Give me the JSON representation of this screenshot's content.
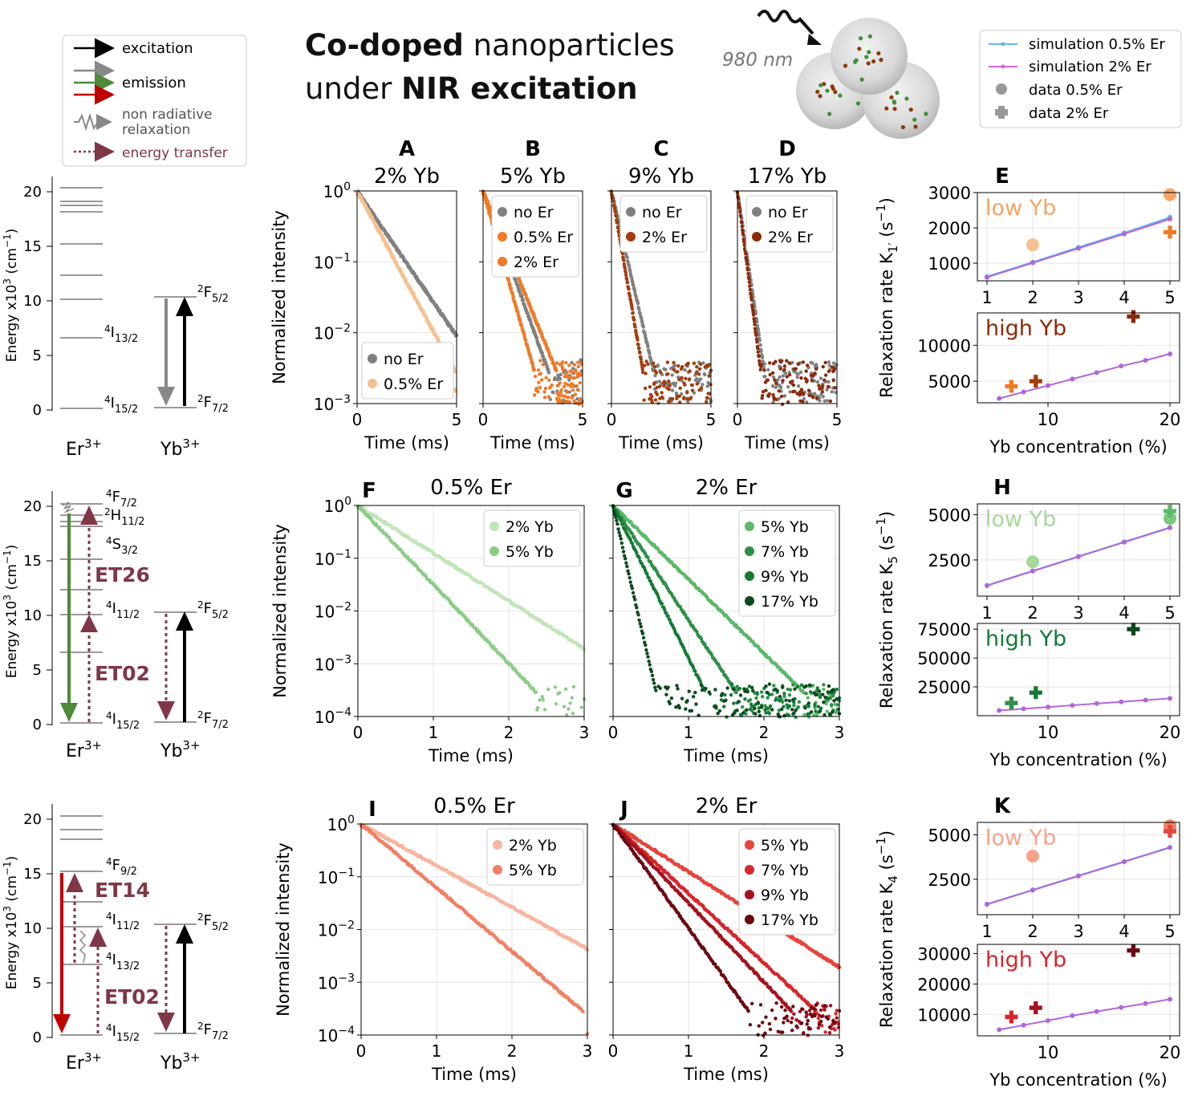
{
  "title": {
    "part1_bold": "Co-doped",
    "part1_rest": " nanoparticles",
    "part2_pre": "under ",
    "part2_bold": "NIR excitation"
  },
  "excitation_label": "980 nm",
  "key_legend": {
    "excitation": "excitation",
    "emission": "emission",
    "nonrad_line1": "non radiative",
    "nonrad_line2": "relaxation",
    "energy_transfer": "energy transfer"
  },
  "sim_legend": {
    "sim05": "simulation 0.5% Er",
    "sim2": "simulation 2% Er",
    "data05": "data 0.5% Er",
    "data2": "data 2% Er"
  },
  "colors": {
    "gray": "#808080",
    "orange_light": "#f6c08f",
    "orange": "#ef7a27",
    "brown": "#8b2a0a",
    "green_light": "#a6d89b",
    "green": "#3e9b4a",
    "green_dark": "#0c4a1e",
    "red_light": "#f6a389",
    "red": "#d6272c",
    "red_dark": "#6b0a13",
    "purple": "#b266d9",
    "blue": "#6ab4e8",
    "et": "#7f3747"
  },
  "energy_diagrams": {
    "ylabel": "Energy x10",
    "ylabel_sup": "3",
    "ylabel_unit": " (cm",
    "ylabel_unit_sup": "−1",
    "ylabel_end": ")",
    "yticks": [
      "0",
      "5",
      "10",
      "15",
      "20"
    ],
    "er": "Er",
    "yb": "Yb",
    "ion_charge": "3+",
    "row1": {
      "l1": "4I13/2",
      "l1_sup": "4",
      "l1_main": "I",
      "l1_sub": "13/2",
      "l0_sup": "4",
      "l0_main": "I",
      "l0_sub": "15/2",
      "yb_up_sup": "2",
      "yb_up_main": "F",
      "yb_up_sub": "5/2",
      "yb_lo_sup": "2",
      "yb_lo_main": "F",
      "yb_lo_sub": "7/2"
    },
    "row2": {
      "a_sup": "4",
      "a_main": "F",
      "a_sub": "7/2",
      "b_sup": "2",
      "b_main": "H",
      "b_sub": "11/2",
      "c_sup": "4",
      "c_main": "S",
      "c_sub": "3/2",
      "d_sup": "4",
      "d_main": "I",
      "d_sub": "11/2",
      "e_sup": "4",
      "e_main": "I",
      "e_sub": "15/2",
      "et_top": "ET26",
      "et_bot": "ET02",
      "yb_up_sup": "2",
      "yb_up_main": "F",
      "yb_up_sub": "5/2",
      "yb_lo_sup": "2",
      "yb_lo_main": "F",
      "yb_lo_sub": "7/2"
    },
    "row3": {
      "a_sup": "4",
      "a_main": "F",
      "a_sub": "9/2",
      "b_sup": "4",
      "b_main": "I",
      "b_sub": "11/2",
      "c_sup": "4",
      "c_main": "I",
      "c_sub": "13/2",
      "e_sup": "4",
      "e_main": "I",
      "e_sub": "15/2",
      "et_top": "ET14",
      "et_bot": "ET02",
      "yb_up_sup": "2",
      "yb_up_main": "F",
      "yb_up_sub": "5/2",
      "yb_lo_sup": "2",
      "yb_lo_main": "F",
      "yb_lo_sub": "7/2"
    }
  },
  "chart_data": [
    {
      "id": "A",
      "type": "scatter",
      "letter": "A",
      "title": "2% Yb",
      "xlabel": "Time (ms)",
      "ylabel": "Normalized intensity",
      "yscale": "log",
      "xlim": [
        0,
        5
      ],
      "ylim_exp": [
        -3,
        0
      ],
      "xticks": [
        "0",
        "5"
      ],
      "series": [
        {
          "name": "no Er",
          "color": "#808080",
          "tau": 1.06,
          "noise": 0.0
        },
        {
          "name": "0.5% Er",
          "color": "#f6c08f",
          "tau": 0.84,
          "noise": 0.0
        }
      ],
      "legend": "lower-left"
    },
    {
      "id": "B",
      "type": "scatter",
      "letter": "B",
      "title": "5% Yb",
      "xlabel": "Time (ms)",
      "yscale": "log",
      "xlim": [
        0,
        5
      ],
      "ylim_exp": [
        -3,
        0
      ],
      "xticks": [
        "0",
        "5"
      ],
      "series": [
        {
          "name": "no Er",
          "color": "#808080",
          "tau": 0.56
        },
        {
          "name": "0.5% Er",
          "color": "#ef7a27",
          "tau": 0.63
        },
        {
          "name": "2% Er",
          "color": "#ef7a27",
          "tau": 0.44
        }
      ],
      "legend": "top-right"
    },
    {
      "id": "C",
      "type": "scatter",
      "letter": "C",
      "title": "9% Yb",
      "xlabel": "Time (ms)",
      "yscale": "log",
      "xlim": [
        0,
        5
      ],
      "ylim_exp": [
        -3,
        0
      ],
      "xticks": [
        "0",
        "5"
      ],
      "series": [
        {
          "name": "no Er",
          "color": "#808080",
          "tau": 0.36
        },
        {
          "name": "2% Er",
          "color": "#a23d0e",
          "tau": 0.27
        }
      ],
      "legend": "top-right"
    },
    {
      "id": "D",
      "type": "scatter",
      "letter": "D",
      "title": "17% Yb",
      "xlabel": "Time (ms)",
      "yscale": "log",
      "xlim": [
        0,
        5
      ],
      "ylim_exp": [
        -3,
        0
      ],
      "xticks": [
        "0",
        "5"
      ],
      "series": [
        {
          "name": "no Er",
          "color": "#808080",
          "tau": 0.23
        },
        {
          "name": "2% Er",
          "color": "#8b2a0a",
          "tau": 0.2
        }
      ],
      "legend": "top-right"
    },
    {
      "id": "E",
      "type": "line+scatter",
      "letter": "E",
      "ylabel": "Relaxation rate K",
      "ylabel_sub": "1′",
      "ylabel_unit": " (s",
      "ylabel_unit_sup": "−1",
      "ylabel_end": ")",
      "xlabel": "Yb concentration (%)",
      "top": {
        "label": "low Yb",
        "label_color": "#f6a565",
        "xlim": [
          1,
          5
        ],
        "ylim": [
          500,
          3000
        ],
        "yticks": [
          "1000",
          "2000",
          "3000"
        ],
        "xticks": [
          "1",
          "2",
          "3",
          "4",
          "5"
        ],
        "sim05": {
          "x": [
            1,
            2,
            3,
            4,
            5
          ],
          "y": [
            620,
            1030,
            1450,
            1860,
            2300
          ]
        },
        "sim2": {
          "x": [
            1,
            2,
            3,
            4,
            5
          ],
          "y": [
            600,
            1010,
            1420,
            1830,
            2250
          ]
        },
        "data05": [
          {
            "x": 2,
            "y": 1520,
            "color": "#f6c08f"
          },
          {
            "x": 5,
            "y": 2940,
            "color": "#f6a565"
          }
        ],
        "data2": [
          {
            "x": 5,
            "y": 1880,
            "color": "#ef7a27"
          }
        ]
      },
      "bottom": {
        "label": "high Yb",
        "label_color": "#8b2a0a",
        "xlim": [
          5,
          20
        ],
        "ylim": [
          2000,
          14500
        ],
        "yticks": [
          "5000",
          "10000"
        ],
        "xticks": [
          "10",
          "20"
        ],
        "sim2": {
          "x": [
            6,
            8,
            10,
            12,
            14,
            16,
            18,
            20
          ],
          "y": [
            2600,
            3500,
            4400,
            5300,
            6200,
            7100,
            7900,
            8800
          ]
        },
        "data2": [
          {
            "x": 7,
            "y": 4300,
            "color": "#ef7a27"
          },
          {
            "x": 9,
            "y": 5000,
            "color": "#a23d0e"
          },
          {
            "x": 17,
            "y": 14000,
            "color": "#8b2a0a"
          }
        ]
      }
    },
    {
      "id": "F",
      "type": "scatter",
      "letter": "F",
      "title": "0.5% Er",
      "xlabel": "Time (ms)",
      "ylabel": "Normalized intensity",
      "yscale": "log",
      "xlim": [
        0,
        3
      ],
      "ylim_exp": [
        -4,
        0
      ],
      "xticks": [
        "0",
        "1",
        "2",
        "3"
      ],
      "series": [
        {
          "name": "2% Yb",
          "color": "#c2e5b9",
          "tau": 0.48
        },
        {
          "name": "5% Yb",
          "color": "#8ccd86",
          "tau": 0.29
        }
      ],
      "legend": "top-right"
    },
    {
      "id": "G",
      "type": "scatter",
      "letter": "G",
      "title": "2% Er",
      "xlabel": "Time (ms)",
      "yscale": "log",
      "xlim": [
        0,
        3
      ],
      "ylim_exp": [
        -4,
        0
      ],
      "xticks": [
        "0",
        "1",
        "2",
        "3"
      ],
      "series": [
        {
          "name": "5% Yb",
          "color": "#5cb86a",
          "tau": 0.31
        },
        {
          "name": "7% Yb",
          "color": "#2f8f48",
          "tau": 0.2
        },
        {
          "name": "9% Yb",
          "color": "#157a35",
          "tau": 0.15
        },
        {
          "name": "17% Yb",
          "color": "#0c4a1e",
          "tau": 0.07
        }
      ],
      "legend": "top-right"
    },
    {
      "id": "H",
      "type": "line+scatter",
      "letter": "H",
      "ylabel": "Relaxation rate K",
      "ylabel_sub": "5",
      "ylabel_unit": " (s",
      "ylabel_unit_sup": "−1",
      "ylabel_end": ")",
      "xlabel": "Yb concentration (%)",
      "top": {
        "label": "low Yb",
        "label_color": "#a6d89b",
        "xlim": [
          1,
          5
        ],
        "ylim": [
          500,
          5600
        ],
        "yticks": [
          "2500",
          "5000"
        ],
        "xticks": [
          "1",
          "2",
          "3",
          "4",
          "5"
        ],
        "sim05": {
          "x": [
            1,
            2,
            3,
            4,
            5
          ],
          "y": [
            1100,
            1900,
            2700,
            3500,
            4300
          ]
        },
        "sim2": {
          "x": [
            1,
            2,
            3,
            4,
            5
          ],
          "y": [
            1080,
            1880,
            2680,
            3480,
            4280
          ]
        },
        "data05": [
          {
            "x": 2,
            "y": 2400,
            "color": "#a6d89b"
          },
          {
            "x": 5,
            "y": 4800,
            "color": "#7cc97a"
          }
        ],
        "data2": [
          {
            "x": 5,
            "y": 5200,
            "color": "#5cb86a"
          }
        ]
      },
      "bottom": {
        "label": "high Yb",
        "label_color": "#157a35",
        "xlim": [
          5,
          20
        ],
        "ylim": [
          0,
          80000
        ],
        "yticks": [
          "25000",
          "50000",
          "75000"
        ],
        "xticks": [
          "10",
          "20"
        ],
        "sim2": {
          "x": [
            6,
            8,
            10,
            12,
            14,
            16,
            18,
            20
          ],
          "y": [
            4500,
            6000,
            7500,
            9000,
            10500,
            12000,
            13500,
            15000
          ]
        },
        "data2": [
          {
            "x": 7,
            "y": 11000,
            "color": "#2f8f48"
          },
          {
            "x": 9,
            "y": 20000,
            "color": "#157a35"
          },
          {
            "x": 17,
            "y": 75000,
            "color": "#0c4a1e"
          }
        ]
      }
    },
    {
      "id": "I",
      "type": "scatter",
      "letter": "I",
      "title": "0.5% Er",
      "xlabel": "Time (ms)",
      "ylabel": "Normalized intensity",
      "yscale": "log",
      "xlim": [
        0,
        3
      ],
      "ylim_exp": [
        -4,
        0
      ],
      "xticks": [
        "0",
        "1",
        "2",
        "3"
      ],
      "series": [
        {
          "name": "2% Yb",
          "color": "#f8b5a0",
          "tau": 0.55
        },
        {
          "name": "5% Yb",
          "color": "#f08064",
          "tau": 0.36
        }
      ],
      "legend": "top-right"
    },
    {
      "id": "J",
      "type": "scatter",
      "letter": "J",
      "title": "2% Er",
      "xlabel": "Time (ms)",
      "yscale": "log",
      "xlim": [
        0,
        3
      ],
      "ylim_exp": [
        -4,
        0
      ],
      "xticks": [
        "0",
        "1",
        "2",
        "3"
      ],
      "series": [
        {
          "name": "5% Yb",
          "color": "#e5453a",
          "tau": 0.48
        },
        {
          "name": "7% Yb",
          "color": "#d6272c",
          "tau": 0.33
        },
        {
          "name": "9% Yb",
          "color": "#a4121f",
          "tau": 0.29
        },
        {
          "name": "17% Yb",
          "color": "#6b0a13",
          "tau": 0.22
        }
      ],
      "legend": "top-right"
    },
    {
      "id": "K",
      "type": "line+scatter",
      "letter": "K",
      "ylabel": "Relaxation rate K",
      "ylabel_sub": "4",
      "ylabel_unit": " (s",
      "ylabel_unit_sup": "−1",
      "ylabel_end": ")",
      "xlabel": "Yb concentration (%)",
      "top": {
        "label": "low Yb",
        "label_color": "#f6a389",
        "xlim": [
          1,
          5
        ],
        "ylim": [
          500,
          5700
        ],
        "yticks": [
          "2500",
          "5000"
        ],
        "xticks": [
          "1",
          "2",
          "3",
          "4",
          "5"
        ],
        "sim05": {
          "x": [
            1,
            2,
            3,
            4,
            5
          ],
          "y": [
            1100,
            1900,
            2700,
            3500,
            4300
          ]
        },
        "sim2": {
          "x": [
            1,
            2,
            3,
            4,
            5
          ],
          "y": [
            1080,
            1880,
            2680,
            3480,
            4280
          ]
        },
        "data05": [
          {
            "x": 2,
            "y": 3800,
            "color": "#f6a389"
          },
          {
            "x": 5,
            "y": 5500,
            "color": "#f08064"
          }
        ],
        "data2": [
          {
            "x": 5,
            "y": 5200,
            "color": "#e5453a"
          }
        ]
      },
      "bottom": {
        "label": "high Yb",
        "label_color": "#d6272c",
        "xlim": [
          5,
          20
        ],
        "ylim": [
          3000,
          33000
        ],
        "yticks": [
          "10000",
          "20000",
          "30000"
        ],
        "xticks": [
          "10",
          "20"
        ],
        "sim2": {
          "x": [
            6,
            8,
            10,
            12,
            14,
            16,
            18,
            20
          ],
          "y": [
            5000,
            6500,
            8000,
            9600,
            11000,
            12300,
            13600,
            15000
          ]
        },
        "data2": [
          {
            "x": 7,
            "y": 9200,
            "color": "#d6272c"
          },
          {
            "x": 9,
            "y": 12200,
            "color": "#a4121f"
          },
          {
            "x": 17,
            "y": 31000,
            "color": "#6b0a13"
          }
        ]
      }
    }
  ]
}
